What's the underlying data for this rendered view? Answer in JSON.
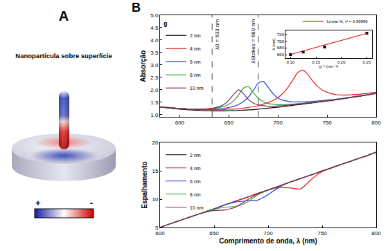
{
  "panel_a": {
    "letter": "A",
    "title": "Nanopartícula sobre superfície",
    "colorbar_labels": [
      "+",
      "-"
    ]
  },
  "panel_b": {
    "letter": "B"
  },
  "chart_data": [
    {
      "type": "line",
      "y_label": "Absorção",
      "legend_title": "g",
      "legend": "upper left",
      "grid": false,
      "xlim": [
        580,
        800
      ],
      "xticks": [
        600,
        650,
        700,
        750,
        800
      ],
      "ylim": [
        0.9,
        5.0
      ],
      "yticks": [
        {
          "value": 1,
          "label": "1.0"
        },
        1.5,
        {
          "value": 2,
          "label": "2.0"
        },
        2.5,
        {
          "value": 3,
          "label": "3.0"
        },
        3.5,
        {
          "value": 4,
          "label": "4.0"
        },
        4.5,
        {
          "value": 5,
          "label": "5.0"
        }
      ],
      "annotations": [
        {
          "x": 633,
          "text": "λ0 = 633 nm"
        },
        {
          "x": 680,
          "text": "λStokes = 680 nm"
        }
      ],
      "x": [
        580,
        585,
        590,
        595,
        600,
        605,
        610,
        615,
        620,
        625,
        630,
        635,
        640,
        645,
        650,
        655,
        660,
        665,
        670,
        675,
        680,
        685,
        690,
        695,
        700,
        705,
        710,
        715,
        720,
        725,
        730,
        735,
        740,
        745,
        750,
        755,
        760,
        765,
        770,
        775,
        780,
        785,
        790,
        795,
        800
      ],
      "series": [
        {
          "name": "2 nm",
          "color": "#000000",
          "values": [
            1.3,
            1.28,
            1.26,
            1.24,
            1.22,
            1.21,
            1.19,
            1.18,
            1.17,
            1.16,
            1.16,
            1.15,
            1.15,
            1.15,
            1.16,
            1.16,
            1.17,
            1.18,
            1.19,
            1.2,
            1.22,
            1.24,
            1.26,
            1.28,
            1.3,
            1.32,
            1.35,
            1.37,
            1.4,
            1.42,
            1.45,
            1.47,
            1.5,
            1.52,
            1.55,
            1.57,
            1.6,
            1.63,
            1.66,
            1.69,
            1.72,
            1.75,
            1.78,
            1.82,
            1.85
          ]
        },
        {
          "name": "4 nm",
          "color": "#e41a1c",
          "values": [
            1.32,
            1.3,
            1.28,
            1.26,
            1.24,
            1.23,
            1.21,
            1.21,
            1.2,
            1.19,
            1.19,
            1.19,
            1.19,
            1.2,
            1.22,
            1.22,
            1.24,
            1.26,
            1.29,
            1.32,
            1.36,
            1.42,
            1.49,
            1.57,
            1.69,
            1.85,
            2.09,
            2.38,
            2.69,
            2.79,
            2.64,
            2.37,
            2.15,
            1.99,
            1.9,
            1.83,
            1.8,
            1.79,
            1.79,
            1.8,
            1.81,
            1.83,
            1.85,
            1.88,
            1.9
          ]
        },
        {
          "name": "6 nm",
          "color": "#1f3fd1",
          "values": [
            1.31,
            1.3,
            1.28,
            1.26,
            1.24,
            1.24,
            1.22,
            1.21,
            1.21,
            1.21,
            1.21,
            1.22,
            1.23,
            1.25,
            1.29,
            1.33,
            1.41,
            1.53,
            1.71,
            1.98,
            2.27,
            2.34,
            2.1,
            1.84,
            1.67,
            1.58,
            1.54,
            1.51,
            1.51,
            1.51,
            1.52,
            1.53,
            1.55,
            1.56,
            1.59,
            1.6,
            1.63,
            1.65,
            1.68,
            1.71,
            1.74,
            1.77,
            1.8,
            1.83,
            1.86
          ]
        },
        {
          "name": "8 nm",
          "color": "#2ca02c",
          "values": [
            1.31,
            1.3,
            1.28,
            1.26,
            1.24,
            1.24,
            1.22,
            1.22,
            1.22,
            1.22,
            1.23,
            1.25,
            1.28,
            1.33,
            1.42,
            1.56,
            1.8,
            2.07,
            2.13,
            1.88,
            1.66,
            1.52,
            1.45,
            1.42,
            1.4,
            1.4,
            1.41,
            1.42,
            1.44,
            1.45,
            1.48,
            1.49,
            1.52,
            1.54,
            1.57,
            1.59,
            1.62,
            1.64,
            1.67,
            1.7,
            1.73,
            1.76,
            1.79,
            1.82,
            1.85
          ]
        },
        {
          "name": "10 nm",
          "color": "#8b2252",
          "values": [
            1.31,
            1.29,
            1.28,
            1.26,
            1.24,
            1.24,
            1.22,
            1.22,
            1.22,
            1.22,
            1.24,
            1.27,
            1.32,
            1.41,
            1.58,
            1.82,
            2.0,
            1.84,
            1.61,
            1.46,
            1.39,
            1.36,
            1.34,
            1.34,
            1.35,
            1.36,
            1.38,
            1.4,
            1.42,
            1.44,
            1.47,
            1.48,
            1.51,
            1.53,
            1.56,
            1.58,
            1.61,
            1.64,
            1.67,
            1.7,
            1.73,
            1.76,
            1.79,
            1.82,
            1.85
          ]
        }
      ]
    },
    {
      "type": "scatter",
      "x_label": "g⁻¹ (nm⁻¹)",
      "y_label": "λ (nm)",
      "legend": "top right",
      "grid": false,
      "xlim": [
        0.09,
        0.26
      ],
      "xticks": [
        {
          "value": 0.1,
          "label": "0.10"
        },
        0.15,
        {
          "value": 0.2,
          "label": "0.20"
        },
        0.25
      ],
      "ylim": [
        650,
        732
      ],
      "yticks": [
        660,
        680,
        700,
        720
      ],
      "series": [
        {
          "type": "scatter",
          "marker": "square",
          "color": "#000000",
          "x": [
            0.1,
            0.125,
            0.167,
            0.25
          ],
          "values": [
            660,
            668,
            683,
            724
          ]
        },
        {
          "name": "Linear fit, r² = 0.99989",
          "type": "line",
          "color": "#e41a1c",
          "x": [
            0.1,
            0.25
          ],
          "values": [
            660.5,
            723.5
          ]
        }
      ]
    },
    {
      "type": "line",
      "y_label": "Espalhamento",
      "x_label": "Comprimento de onda, λ (nm)",
      "legend": "upper left",
      "grid": false,
      "xlim": [
        600,
        800
      ],
      "xticks": [
        600,
        650,
        700,
        750,
        800
      ],
      "ylim": [
        5,
        20
      ],
      "yticks": [
        5,
        10,
        15,
        20
      ],
      "x": [
        600,
        610,
        620,
        630,
        640,
        650,
        660,
        670,
        680,
        690,
        700,
        710,
        720,
        730,
        740,
        750,
        760,
        770,
        780,
        790,
        800
      ],
      "series": [
        {
          "name": "2 nm",
          "color": "#000000",
          "values": [
            5.0,
            5.7,
            6.35,
            7.0,
            7.65,
            8.3,
            9.0,
            9.65,
            10.3,
            11.0,
            11.65,
            12.3,
            13.0,
            13.65,
            14.3,
            15.0,
            15.65,
            16.3,
            16.95,
            17.6,
            18.3
          ]
        },
        {
          "name": "4 nm",
          "color": "#e41a1c",
          "values": [
            5.0,
            5.7,
            6.35,
            7.0,
            7.65,
            8.3,
            9.0,
            9.65,
            10.3,
            11.0,
            11.6,
            12.1,
            12.0,
            11.8,
            13.5,
            14.9,
            15.6,
            16.3,
            16.95,
            17.6,
            18.3
          ]
        },
        {
          "name": "6 nm",
          "color": "#1f3fd1",
          "values": [
            5.0,
            5.7,
            6.35,
            7.0,
            7.65,
            8.3,
            9.0,
            9.5,
            9.7,
            9.8,
            10.8,
            12.1,
            13.0,
            13.65,
            14.3,
            15.0,
            15.65,
            16.3,
            16.95,
            17.6,
            18.3
          ]
        },
        {
          "name": "8 nm",
          "color": "#2ca02c",
          "values": [
            5.0,
            5.7,
            6.35,
            7.0,
            7.65,
            8.2,
            8.6,
            8.7,
            9.4,
            10.7,
            11.6,
            12.3,
            13.0,
            13.65,
            14.3,
            15.0,
            15.65,
            16.3,
            16.95,
            17.6,
            18.3
          ]
        },
        {
          "name": "10 nm",
          "color": "#8b2252",
          "values": [
            5.0,
            5.7,
            6.35,
            7.0,
            7.6,
            8.0,
            8.1,
            8.6,
            9.8,
            10.9,
            11.65,
            12.3,
            13.0,
            13.65,
            14.3,
            15.0,
            15.65,
            16.3,
            16.95,
            17.6,
            18.3
          ]
        }
      ]
    }
  ]
}
